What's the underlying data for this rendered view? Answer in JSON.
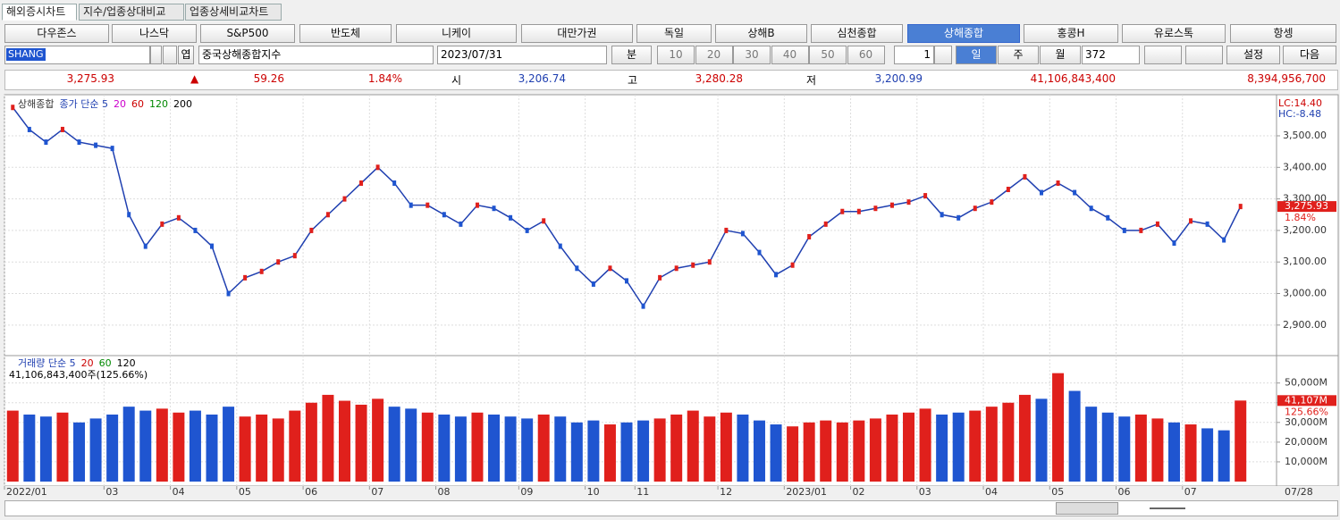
{
  "tabs": [
    "해외증시차트",
    "지수/업종상대비교",
    "업종상세비교차트"
  ],
  "markets": [
    "다우존스",
    "나스닥",
    "S&P500",
    "반도체",
    "니케이",
    "대만가권",
    "독일",
    "상해B",
    "심천종합",
    "상해종합",
    "홍콩H",
    "유로스톡",
    "항셍"
  ],
  "controls": {
    "code": "SHANG",
    "name": "중국상해종합지수",
    "date": "2023/07/31",
    "minute": "분",
    "minute_options": [
      "10",
      "20",
      "30",
      "40",
      "50",
      "60"
    ],
    "unit": "1",
    "day": "일",
    "week": "주",
    "month": "월",
    "count": "372",
    "settings": "설정",
    "next": "다음",
    "search_hint": "엽"
  },
  "quote": {
    "last": "3,275.93",
    "arrow": "▲",
    "change": "59.26",
    "change_pct": "1.84%",
    "open_label": "시",
    "open": "3,206.74",
    "high_label": "고",
    "high": "3,280.28",
    "low_label": "저",
    "low": "3,200.99",
    "volume": "41,106,843,400",
    "amount": "8,394,956,700"
  },
  "chart_data": {
    "type": "price-volume",
    "price_legend": [
      "상해종합",
      "종가 단순 5",
      "20",
      "60",
      "120",
      "200"
    ],
    "lc": "LC:14.40",
    "hc": "HC:-8.48",
    "last_flag": "3,275.93",
    "last_flag_pct": "1.84%",
    "volume_legend": [
      "거래량 단순 5",
      "20",
      "60",
      "120"
    ],
    "volume_caption": "41,106,843,400주(125.66%)",
    "volume_flag": "41,107M",
    "volume_flag_pct": "125.66%",
    "last_date": "07/28",
    "categories": [
      "2022/01",
      null,
      null,
      null,
      null,
      null,
      "03",
      null,
      null,
      null,
      "04",
      null,
      null,
      null,
      "05",
      null,
      null,
      null,
      "06",
      null,
      null,
      null,
      "07",
      null,
      null,
      null,
      "08",
      null,
      null,
      null,
      null,
      "09",
      null,
      null,
      null,
      "10",
      null,
      null,
      "11",
      null,
      null,
      null,
      null,
      "12",
      null,
      null,
      null,
      "2023/01",
      null,
      null,
      null,
      "02",
      null,
      null,
      null,
      "03",
      null,
      null,
      null,
      "04",
      null,
      null,
      null,
      "05",
      null,
      null,
      null,
      "06",
      null,
      null,
      null,
      "07",
      null,
      null,
      null
    ],
    "series": [
      {
        "name": "상해종합",
        "color": "#1f3fb0",
        "axis": "y",
        "values": [
          3590,
          3520,
          3480,
          3520,
          3480,
          3470,
          3460,
          3250,
          3150,
          3220,
          3240,
          3200,
          3150,
          3000,
          3050,
          3070,
          3100,
          3120,
          3200,
          3250,
          3300,
          3350,
          3400,
          3350,
          3280,
          3280,
          3250,
          3220,
          3280,
          3270,
          3240,
          3200,
          3230,
          3150,
          3080,
          3030,
          3080,
          3040,
          2960,
          3050,
          3080,
          3090,
          3100,
          3200,
          3190,
          3130,
          3060,
          3090,
          3180,
          3220,
          3260,
          3260,
          3270,
          3280,
          3290,
          3310,
          3250,
          3240,
          3270,
          3290,
          3330,
          3370,
          3320,
          3350,
          3320,
          3270,
          3240,
          3200,
          3200,
          3220,
          3160,
          3230,
          3220,
          3170,
          3275.93
        ]
      },
      {
        "name": "거래량",
        "color": "#d9261c",
        "axis": "y2",
        "values": [
          36000,
          34000,
          33000,
          35000,
          30000,
          32000,
          34000,
          38000,
          36000,
          37000,
          35000,
          36000,
          34000,
          38000,
          33000,
          34000,
          32000,
          36000,
          40000,
          44000,
          41000,
          39000,
          42000,
          38000,
          37000,
          35000,
          34000,
          33000,
          35000,
          34000,
          33000,
          32000,
          34000,
          33000,
          30000,
          31000,
          29000,
          30000,
          31000,
          32000,
          34000,
          36000,
          33000,
          35000,
          34000,
          31000,
          29000,
          28000,
          30000,
          31000,
          30000,
          31000,
          32000,
          34000,
          35000,
          37000,
          34000,
          35000,
          36000,
          38000,
          40000,
          44000,
          42000,
          55000,
          46000,
          38000,
          35000,
          33000,
          34000,
          32000,
          30000,
          29000,
          27000,
          26000,
          41106.8434
        ]
      }
    ],
    "ylim": [
      2806,
      3619
    ],
    "yticks": [
      {
        "value": 2900,
        "label": "2,900.00"
      },
      {
        "value": 3000,
        "label": "3,000.00"
      },
      {
        "value": 3100,
        "label": "3,100.00"
      },
      {
        "value": 3200,
        "label": "3,200.00"
      },
      {
        "value": 3300,
        "label": "3,300.00"
      },
      {
        "value": 3400,
        "label": "3,400.00"
      },
      {
        "value": 3500,
        "label": "3,500.00"
      }
    ],
    "y2lim": [
      0,
      63000
    ],
    "y2ticks": [
      {
        "value": 10000,
        "label": "10,000M"
      },
      {
        "value": 20000,
        "label": "20,000M"
      },
      {
        "value": 30000,
        "label": "30,000M"
      },
      {
        "value": 40000,
        "label": "40,000M"
      },
      {
        "value": 50000,
        "label": "50,000M"
      }
    ],
    "up_color": "#e0201c",
    "down_color": "#1f55d0",
    "grid": true
  }
}
